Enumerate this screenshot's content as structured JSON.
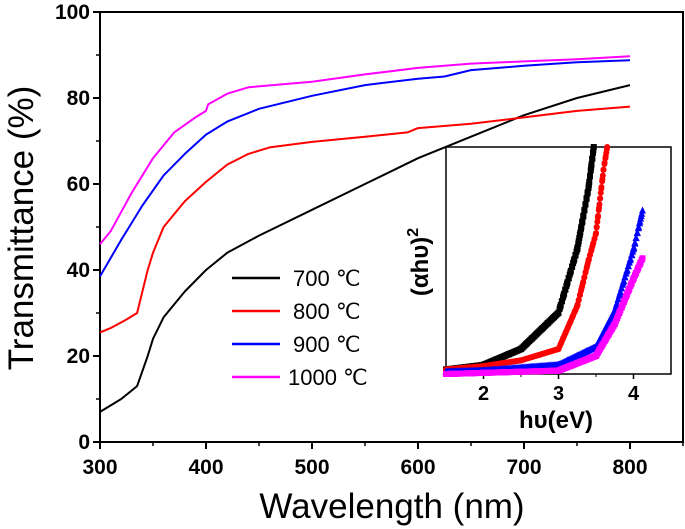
{
  "chart_data": [
    {
      "type": "line",
      "xlabel": "Wavelength (nm)",
      "ylabel": "Transmittance (%)",
      "xlim": [
        300,
        850
      ],
      "ylim": [
        0,
        100
      ],
      "xticks": [
        300,
        400,
        500,
        600,
        700,
        800
      ],
      "yticks": [
        0,
        20,
        40,
        60,
        80,
        100
      ],
      "grid": false,
      "legend_placement": "center",
      "series": [
        {
          "name": "700 ℃",
          "color": "#000000",
          "x": [
            300,
            320,
            335,
            345,
            350,
            360,
            380,
            400,
            420,
            450,
            500,
            550,
            600,
            650,
            700,
            750,
            800
          ],
          "y": [
            7,
            10,
            13,
            20,
            24,
            29,
            35,
            40,
            44,
            48,
            54,
            60,
            66,
            71,
            76,
            80,
            83
          ]
        },
        {
          "name": "800 ℃",
          "color": "#ff0000",
          "x": [
            300,
            310,
            325,
            335,
            345,
            350,
            360,
            380,
            400,
            420,
            440,
            460,
            500,
            550,
            590,
            600,
            650,
            700,
            750,
            800
          ],
          "y": [
            25.5,
            26.5,
            28.5,
            30,
            40,
            44,
            50,
            56,
            60.5,
            64.5,
            67,
            68.5,
            69.8,
            71,
            72,
            73,
            74,
            75.5,
            77,
            78
          ]
        },
        {
          "name": "900 ℃",
          "color": "#0000ff",
          "x": [
            300,
            320,
            340,
            360,
            380,
            400,
            420,
            450,
            500,
            550,
            600,
            625,
            650,
            700,
            750,
            800
          ],
          "y": [
            38.5,
            47,
            55,
            62,
            67,
            71.5,
            74.5,
            77.5,
            80.5,
            83,
            84.5,
            85,
            86.5,
            87.5,
            88.3,
            88.8
          ]
        },
        {
          "name": "1000 ℃",
          "color": "#ff00ff",
          "x": [
            300,
            310,
            330,
            350,
            370,
            390,
            400,
            402,
            420,
            440,
            500,
            550,
            600,
            650,
            700,
            750,
            800
          ],
          "y": [
            46,
            49,
            58,
            66,
            72,
            75.5,
            77,
            78.5,
            81,
            82.5,
            83.8,
            85.5,
            87,
            88,
            88.5,
            89,
            89.7
          ]
        }
      ]
    },
    {
      "type": "scatter",
      "xlabel": "hυ(eV)",
      "ylabel": "(αhυ)",
      "ylabel_superscript": "2",
      "xlim": [
        1.5,
        4.5
      ],
      "ylim": [
        0,
        100
      ],
      "xticks": [
        2,
        3,
        4
      ],
      "y_unit": "arbitrary",
      "series": [
        {
          "color": "#000000",
          "marker": "square",
          "x": [
            1.5,
            2.0,
            2.5,
            3.0,
            3.25,
            3.4,
            3.47
          ],
          "y": [
            2,
            4,
            11,
            27,
            55,
            82,
            100
          ]
        },
        {
          "color": "#ff0000",
          "marker": "circle",
          "x": [
            1.5,
            2.0,
            2.5,
            3.0,
            3.25,
            3.4,
            3.5,
            3.6,
            3.65
          ],
          "y": [
            2,
            3.5,
            6,
            11,
            30,
            50,
            62,
            90,
            100
          ]
        },
        {
          "color": "#0000ff",
          "marker": "triangle",
          "x": [
            1.5,
            2.0,
            3.0,
            3.5,
            3.75,
            4.0,
            4.12
          ],
          "y": [
            1,
            1.5,
            4,
            12,
            28,
            55,
            72
          ]
        },
        {
          "color": "#ff00ff",
          "marker": "square",
          "x": [
            1.5,
            2.0,
            3.0,
            3.5,
            3.75,
            4.0,
            4.12
          ],
          "y": [
            0,
            0.5,
            1.5,
            8,
            22,
            42,
            51
          ]
        }
      ]
    }
  ]
}
